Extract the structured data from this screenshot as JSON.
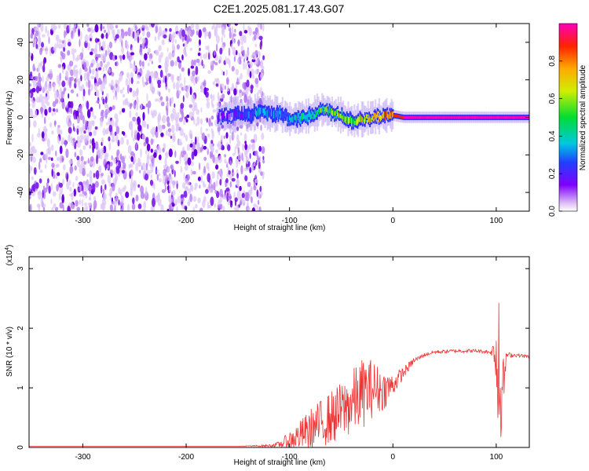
{
  "title": "C2E1.2025.081.17.43.G07",
  "colors": {
    "colormap": [
      "#ffffff",
      "#d9b8f5",
      "#7f00ff",
      "#3344ff",
      "#00c8e0",
      "#00dd33",
      "#d0ee00",
      "#ffaa00",
      "#ff2200",
      "#ff00bb"
    ],
    "snr_line": "#ee3333",
    "axis": "#000000"
  },
  "chart_data": [
    {
      "type": "heatmap",
      "title": "C2E1.2025.081.17.43.G07",
      "xlabel": "Height of straight line (km)",
      "ylabel": "Frequency (Hz)",
      "xlim": [
        -352,
        132
      ],
      "ylim": [
        -50,
        50
      ],
      "x_ticks": [
        -300,
        -200,
        -100,
        0,
        100
      ],
      "x_tick_labels": [
        "-300",
        "-200",
        "-100",
        "0",
        "100"
      ],
      "y_ticks": [
        -40,
        -20,
        0,
        20,
        40
      ],
      "y_tick_labels": [
        "-40",
        "-20",
        "0",
        "20",
        "40"
      ],
      "grid": false,
      "description_noise_region_x": [
        -352,
        -125
      ],
      "signal_track": {
        "x": [
          -170,
          -160,
          -150,
          -140,
          -130,
          -120,
          -110,
          -100,
          -90,
          -80,
          -70,
          -60,
          -50,
          -40,
          -30,
          -20,
          -10,
          0,
          10,
          50,
          100,
          132
        ],
        "y": [
          0,
          1,
          2,
          1,
          4,
          2,
          2,
          -1,
          0,
          1,
          4,
          3,
          1,
          -2,
          -1,
          0,
          1,
          1,
          0,
          0,
          0,
          0
        ],
        "amplitude": [
          0.15,
          0.2,
          0.25,
          0.3,
          0.35,
          0.35,
          0.4,
          0.45,
          0.45,
          0.5,
          0.55,
          0.55,
          0.6,
          0.6,
          0.65,
          0.7,
          0.75,
          0.85,
          0.95,
          0.95,
          0.95,
          0.95
        ]
      },
      "colorbar": {
        "label": "Normalized spectral amplitude",
        "range": [
          0,
          1
        ],
        "ticks": [
          0.0,
          0.2,
          0.4,
          0.6,
          0.8
        ],
        "tick_labels": [
          "0.0",
          "0.2",
          "0.4",
          "0.6",
          "0.8"
        ]
      }
    },
    {
      "type": "line",
      "xlabel": "Height of straight line (km)",
      "ylabel": "SNR (10 * v/v)",
      "y_multiplier": "(x10",
      "y_multiplier_exp": "4",
      "y_multiplier_close": ")",
      "xlim": [
        -352,
        132
      ],
      "ylim": [
        0,
        3.2
      ],
      "x_ticks": [
        -300,
        -200,
        -100,
        0,
        100
      ],
      "x_tick_labels": [
        "-300",
        "-200",
        "-100",
        "0",
        "100"
      ],
      "y_ticks": [
        0,
        1,
        2,
        3
      ],
      "y_tick_labels": [
        "0",
        "1",
        "2",
        "3"
      ],
      "grid": false,
      "series": [
        {
          "x": [
            -352,
            -250,
            -150,
            -120,
            -110,
            -100,
            -90,
            -80,
            -70,
            -60,
            -50,
            -40,
            -30,
            -20,
            -10,
            0,
            10,
            20,
            30,
            40,
            60,
            80,
            95,
            100,
            102,
            104,
            106,
            110,
            120,
            132
          ],
          "y": [
            0.02,
            0.02,
            0.02,
            0.03,
            0.05,
            0.12,
            0.2,
            0.3,
            0.4,
            0.5,
            0.6,
            0.75,
            0.9,
            1.0,
            0.95,
            1.05,
            1.25,
            1.45,
            1.55,
            1.6,
            1.62,
            1.62,
            1.6,
            1.62,
            0.7,
            1.6,
            0.9,
            1.55,
            1.55,
            1.52
          ],
          "noise_amplitude": [
            0,
            0,
            0,
            0.02,
            0.05,
            0.15,
            0.25,
            0.35,
            0.4,
            0.45,
            0.5,
            0.55,
            0.6,
            0.5,
            0.35,
            0.2,
            0.1,
            0.05,
            0.03,
            0.03,
            0.03,
            0.03,
            0.03,
            0.5,
            0.8,
            1.5,
            0.6,
            0.05,
            0.03,
            0.03
          ]
        }
      ]
    }
  ]
}
